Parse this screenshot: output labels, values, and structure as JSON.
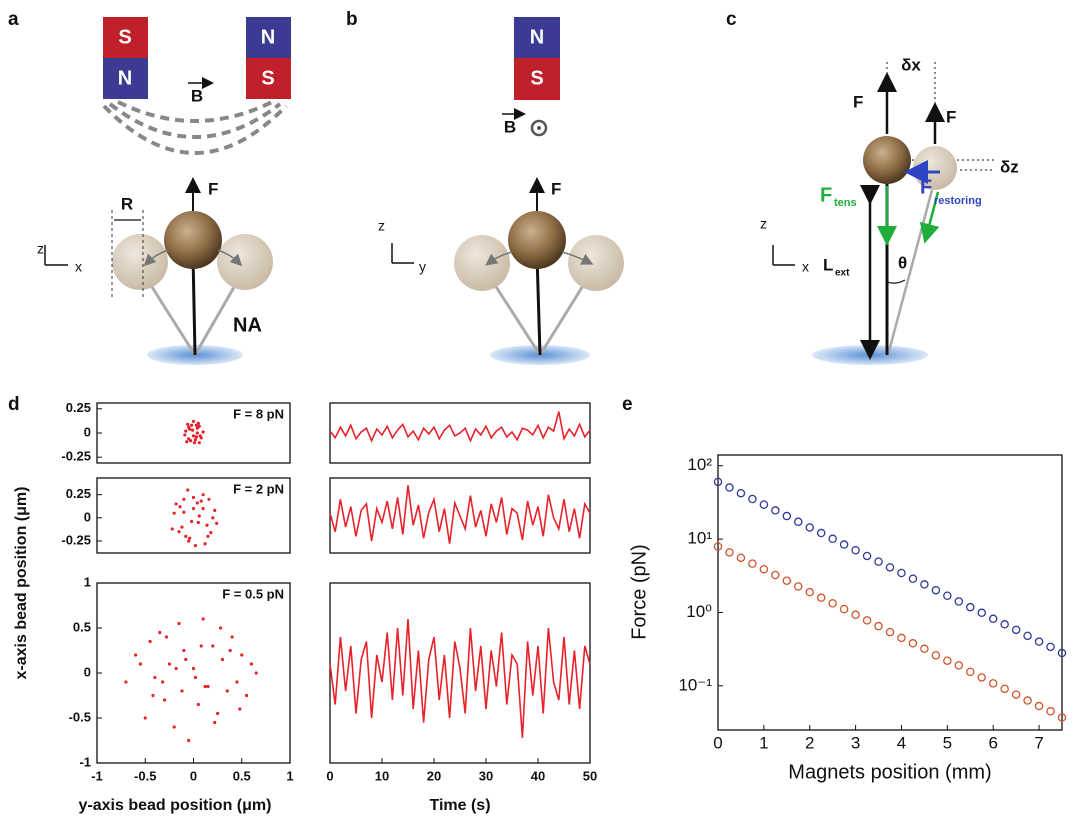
{
  "panel_labels": [
    "a",
    "b",
    "c",
    "d",
    "e"
  ],
  "diagram_a": {
    "magnet_left": [
      "S",
      "N"
    ],
    "magnet_right": [
      "N",
      "S"
    ],
    "field": "B",
    "force": "F",
    "radius": "R",
    "axis_z": "z",
    "axis_x": "x",
    "tether": "NA"
  },
  "diagram_b": {
    "magnet": [
      "N",
      "S"
    ],
    "field": "B",
    "force": "F",
    "axis_z": "z",
    "axis_y": "y"
  },
  "diagram_c": {
    "dx": "δx",
    "dz": "δz",
    "force_left": "F",
    "force_right": "F",
    "tension": "F",
    "tension_sub": "tens",
    "restoring": "F",
    "restoring_sub": "restoring",
    "axis_z": "z",
    "axis_x": "x",
    "length": "L",
    "length_sub": "ext",
    "angle": "θ"
  },
  "chart_data": [
    {
      "type": "scatter",
      "annotation": "F = 8 pN",
      "ylabel": "x-axis bead position (μm)",
      "color": "#e8222a",
      "x": [
        -0.08,
        -0.05,
        -0.02,
        0.01,
        0.04,
        0.07,
        0.1,
        -0.06,
        -0.03,
        0,
        0.03,
        0.06,
        -0.09,
        -0.04,
        0.02,
        0.05,
        0.08,
        -0.07,
        -0.01,
        0.03,
        0.06,
        -0.05,
        0,
        0.04
      ],
      "values": [
        0.02,
        -0.06,
        0.08,
        -0.1,
        0.05,
        -0.03,
        0.01,
        0.09,
        -0.08,
        0.12,
        -0.04,
        0.07,
        -0.02,
        0.04,
        -0.07,
        0.1,
        -0.05,
        -0.09,
        0.03,
        0.08,
        -0.1,
        0.06,
        -0.03,
        0
      ],
      "xlim": [
        -1,
        1
      ],
      "ylim": [
        -0.31,
        0.31
      ],
      "yticks": [
        0.25,
        0,
        -0.25
      ]
    },
    {
      "type": "line",
      "color": "#e8222a",
      "x": [
        0,
        1,
        2,
        3,
        4,
        5,
        6,
        7,
        8,
        9,
        10,
        11,
        12,
        13,
        14,
        15,
        16,
        17,
        18,
        19,
        20,
        21,
        22,
        23,
        24,
        25,
        26,
        27,
        28,
        29,
        30,
        31,
        32,
        33,
        34,
        35,
        36,
        37,
        38,
        39,
        40,
        41,
        42,
        43,
        44,
        45,
        46,
        47,
        48,
        49,
        50
      ],
      "values": [
        0.02,
        -0.05,
        0.06,
        -0.03,
        0.08,
        -0.06,
        0.01,
        0.05,
        -0.08,
        0.04,
        -0.02,
        0.07,
        -0.05,
        0.03,
        0.09,
        -0.04,
        0.02,
        -0.07,
        0.05,
        -0.01,
        0.06,
        -0.06,
        0.03,
        0.08,
        -0.03,
        0,
        0.05,
        -0.08,
        0.04,
        -0.02,
        0.07,
        -0.05,
        0.02,
        0.06,
        -0.04,
        0.01,
        -0.07,
        0.05,
        0.03,
        -0.02,
        0.08,
        -0.05,
        0.06,
        0.02,
        0.22,
        -0.06,
        0.04,
        -0.03,
        0.09,
        -0.04,
        0.03
      ],
      "xlim": [
        0,
        50
      ],
      "ylim": [
        -0.31,
        0.31
      ]
    },
    {
      "type": "scatter",
      "annotation": "F = 2 pN",
      "color": "#e8222a",
      "x": [
        -0.2,
        -0.15,
        -0.1,
        -0.05,
        0,
        0.05,
        0.1,
        0.15,
        0.2,
        -0.18,
        -0.12,
        -0.06,
        0.02,
        0.08,
        0.14,
        0.22,
        -0.22,
        -0.08,
        0,
        0.06,
        0.12,
        -0.14,
        -0.02,
        0.04,
        0.18,
        -0.1,
        0.1,
        -0.04,
        0.16,
        0.24
      ],
      "values": [
        0.05,
        -0.15,
        0.2,
        -0.25,
        0.1,
        -0.05,
        0.25,
        -0.2,
        0,
        0.15,
        -0.1,
        0.3,
        -0.3,
        0.18,
        -0.08,
        0.08,
        -0.12,
        -0.2,
        0.22,
        0.02,
        -0.28,
        0.12,
        -0.04,
        0.16,
        -0.16,
        0.06,
        0.1,
        -0.22,
        0.2,
        -0.06
      ],
      "xlim": [
        -1,
        1
      ],
      "ylim": [
        -0.38,
        0.43
      ],
      "yticks": [
        0.25,
        0,
        -0.25
      ]
    },
    {
      "type": "line",
      "color": "#e8222a",
      "x": [
        0,
        1,
        2,
        3,
        4,
        5,
        6,
        7,
        8,
        9,
        10,
        11,
        12,
        13,
        14,
        15,
        16,
        17,
        18,
        19,
        20,
        21,
        22,
        23,
        24,
        25,
        26,
        27,
        28,
        29,
        30,
        31,
        32,
        33,
        34,
        35,
        36,
        37,
        38,
        39,
        40,
        41,
        42,
        43,
        44,
        45,
        46,
        47,
        48,
        49,
        50
      ],
      "values": [
        0.05,
        -0.15,
        0.2,
        -0.1,
        0.12,
        -0.2,
        0.08,
        0.15,
        -0.25,
        0.1,
        -0.05,
        0.18,
        -0.12,
        0.22,
        -0.18,
        0.35,
        -0.08,
        0.14,
        -0.22,
        0.06,
        0.2,
        -0.15,
        0.1,
        -0.28,
        0.16,
        0.02,
        -0.12,
        0.24,
        -0.1,
        0.08,
        -0.2,
        0.15,
        -0.05,
        0.22,
        -0.18,
        0.1,
        0.05,
        -0.24,
        0.18,
        -0.08,
        0.12,
        -0.2,
        0.25,
        0,
        -0.12,
        0.2,
        -0.15,
        0.1,
        -0.22,
        0.15,
        0.05
      ],
      "xlim": [
        0,
        50
      ],
      "ylim": [
        -0.38,
        0.43
      ]
    },
    {
      "type": "scatter",
      "annotation": "F = 0.5 pN",
      "xlabel": "y-axis bead position (μm)",
      "color": "#e8222a",
      "x": [
        -0.7,
        -0.6,
        -0.5,
        -0.45,
        -0.4,
        -0.35,
        -0.3,
        -0.25,
        -0.2,
        -0.15,
        -0.1,
        -0.05,
        0,
        0.05,
        0.1,
        0.15,
        0.2,
        0.25,
        0.3,
        0.35,
        0.4,
        0.45,
        0.5,
        0.55,
        0.6,
        0.65,
        -0.55,
        -0.32,
        -0.12,
        0.08,
        0.28,
        0.48,
        -0.42,
        -0.18,
        0.02,
        0.22,
        0.38,
        -0.08,
        0.12,
        -0.28
      ],
      "values": [
        -0.1,
        0.2,
        -0.5,
        0.35,
        -0.05,
        0.45,
        -0.3,
        0.1,
        -0.6,
        0.55,
        0.25,
        -0.75,
        0.05,
        -0.35,
        0.6,
        -0.15,
        0.3,
        -0.45,
        0.15,
        -0.2,
        0.4,
        -0.1,
        0.2,
        -0.25,
        0.1,
        0,
        0.1,
        -0.1,
        -0.2,
        0.3,
        0.5,
        -0.4,
        -0.25,
        0.05,
        -0.05,
        -0.55,
        0.25,
        0.15,
        -0.15,
        0.4
      ],
      "xlim": [
        -1,
        1
      ],
      "ylim": [
        -1,
        1
      ],
      "xticks": [
        -1,
        -0.5,
        0,
        0.5,
        1
      ],
      "yticks": [
        1,
        0.5,
        0,
        -0.5,
        -1
      ]
    },
    {
      "type": "line",
      "xlabel": "Time (s)",
      "color": "#e8222a",
      "x": [
        0,
        1,
        2,
        3,
        4,
        5,
        6,
        7,
        8,
        9,
        10,
        11,
        12,
        13,
        14,
        15,
        16,
        17,
        18,
        19,
        20,
        21,
        22,
        23,
        24,
        25,
        26,
        27,
        28,
        29,
        30,
        31,
        32,
        33,
        34,
        35,
        36,
        37,
        38,
        39,
        40,
        41,
        42,
        43,
        44,
        45,
        46,
        47,
        48,
        49,
        50
      ],
      "values": [
        0.1,
        -0.35,
        0.4,
        -0.2,
        0.3,
        -0.45,
        0.15,
        0.35,
        -0.5,
        0.2,
        -0.1,
        0.45,
        -0.3,
        0.5,
        -0.25,
        0.6,
        -0.4,
        0.25,
        -0.55,
        0.15,
        0.4,
        -0.3,
        0.2,
        -0.5,
        0.35,
        0.05,
        -0.45,
        0.5,
        -0.2,
        0.3,
        -0.4,
        0.25,
        -0.15,
        0.45,
        -0.35,
        0.2,
        0.1,
        -0.72,
        0.35,
        -0.25,
        0.3,
        -0.45,
        0.5,
        -0.1,
        -0.3,
        0.4,
        -0.35,
        0.25,
        -0.4,
        0.3,
        0.1
      ],
      "xlim": [
        0,
        50
      ],
      "ylim": [
        -1,
        1
      ],
      "xticks": [
        0,
        10,
        20,
        30,
        40,
        50
      ]
    },
    {
      "type": "scatter",
      "marker": "open-circle",
      "ylog": true,
      "xlabel": "Magnets position (mm)",
      "ylabel": "Force (pN)",
      "x": [
        0,
        0.25,
        0.5,
        0.75,
        1,
        1.25,
        1.5,
        1.75,
        2,
        2.25,
        2.5,
        2.75,
        3,
        3.25,
        3.5,
        3.75,
        4,
        4.25,
        4.5,
        4.75,
        5,
        5.25,
        5.5,
        5.75,
        6,
        6.25,
        6.5,
        6.75,
        7,
        7.25,
        7.5
      ],
      "series": [
        {
          "color": "#2e3a9a",
          "values": [
            60.3,
            50.4,
            42.2,
            35.2,
            29.5,
            24.6,
            20.6,
            17.2,
            14.4,
            12.1,
            10.1,
            8.43,
            7.05,
            5.89,
            4.93,
            4.12,
            3.45,
            2.88,
            2.41,
            2.01,
            1.69,
            1.41,
            1.18,
            0.99,
            0.82,
            0.69,
            0.58,
            0.48,
            0.4,
            0.34,
            0.28
          ]
        },
        {
          "color": "#d4532a",
          "values": [
            7.9,
            6.6,
            5.55,
            4.63,
            3.88,
            3.24,
            2.71,
            2.26,
            1.89,
            1.59,
            1.33,
            1.11,
            0.93,
            0.78,
            0.65,
            0.54,
            0.45,
            0.38,
            0.32,
            0.26,
            0.22,
            0.19,
            0.155,
            0.13,
            0.108,
            0.091,
            0.076,
            0.063,
            0.053,
            0.045,
            0.037
          ]
        }
      ],
      "xlim": [
        0,
        7.5
      ],
      "ylim": [
        0.025,
        140
      ],
      "xticks": [
        0,
        1,
        2,
        3,
        4,
        5,
        6,
        7
      ],
      "yticks": [
        {
          "value": 0.1,
          "label": "10⁻¹"
        },
        {
          "value": 1,
          "label": "10⁰"
        },
        {
          "value": 10,
          "label": "10¹"
        },
        {
          "value": 100,
          "label": "10²"
        }
      ]
    }
  ]
}
